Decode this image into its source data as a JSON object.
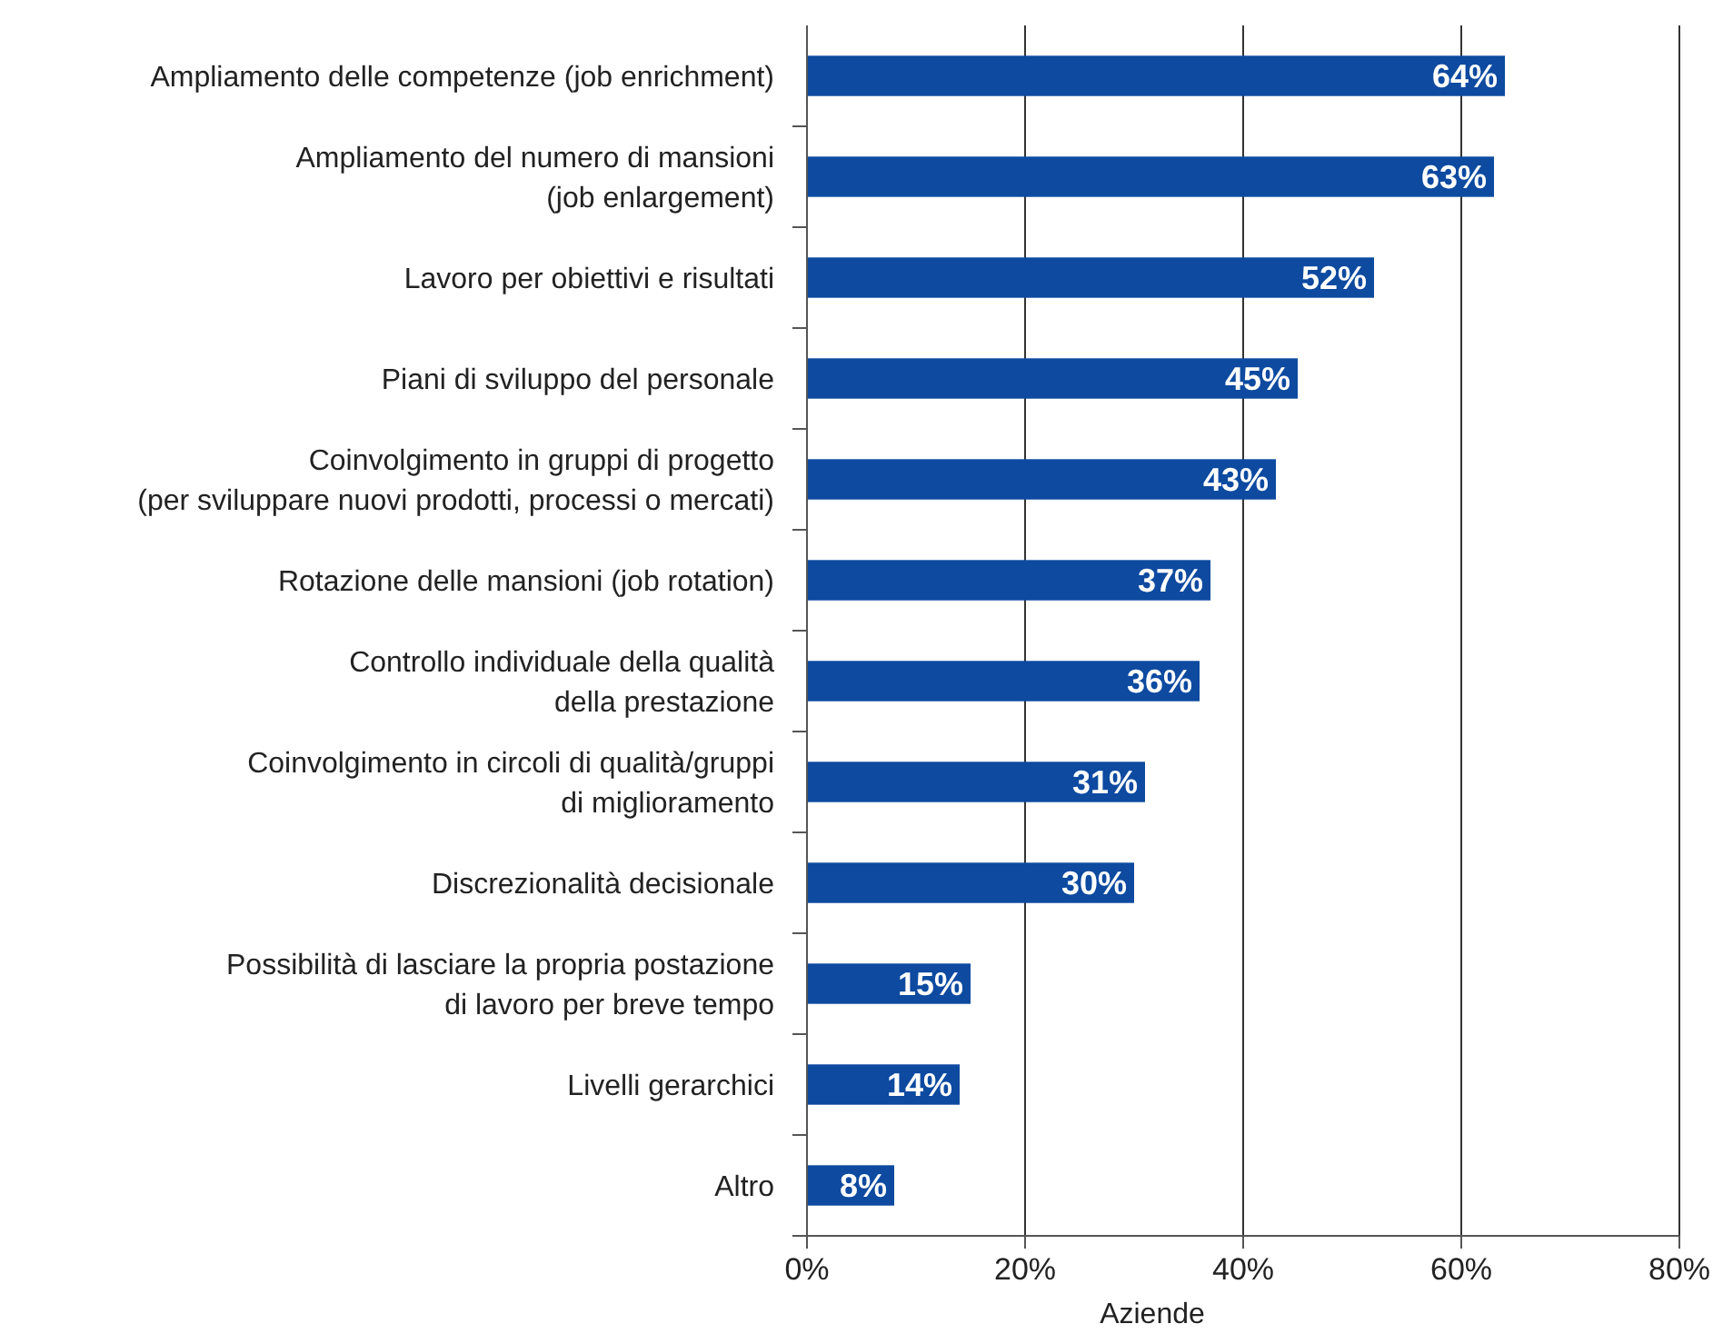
{
  "chart_data": {
    "type": "bar",
    "orientation": "horizontal",
    "xlabel": "Aziende",
    "categories": [
      "Ampliamento delle competenze (job enrichment)",
      "Ampliamento del numero di mansioni\n(job enlargement)",
      "Lavoro per obiettivi e risultati",
      "Piani di sviluppo del personale",
      "Coinvolgimento in gruppi di progetto\n(per sviluppare nuovi prodotti, processi o mercati)",
      "Rotazione delle mansioni (job rotation)",
      "Controllo individuale della qualità\ndella prestazione",
      "Coinvolgimento in circoli di qualità/gruppi\ndi miglioramento",
      "Discrezionalità decisionale",
      "Possibilità di lasciare la propria postazione\ndi lavoro per breve tempo",
      "Livelli gerarchici",
      "Altro"
    ],
    "values": [
      64,
      63,
      52,
      45,
      43,
      37,
      36,
      31,
      30,
      15,
      14,
      8
    ],
    "value_labels": [
      "64%",
      "63%",
      "52%",
      "45%",
      "43%",
      "37%",
      "36%",
      "31%",
      "30%",
      "15%",
      "14%",
      "8%"
    ],
    "color": "#0d4aa0",
    "xlim": [
      0,
      80
    ],
    "xticks": [
      {
        "value": 0,
        "label": "0%"
      },
      {
        "value": 20,
        "label": "20%"
      },
      {
        "value": 40,
        "label": "40%"
      },
      {
        "value": 60,
        "label": "60%"
      },
      {
        "value": 80,
        "label": "80%"
      }
    ],
    "grid": "x"
  }
}
